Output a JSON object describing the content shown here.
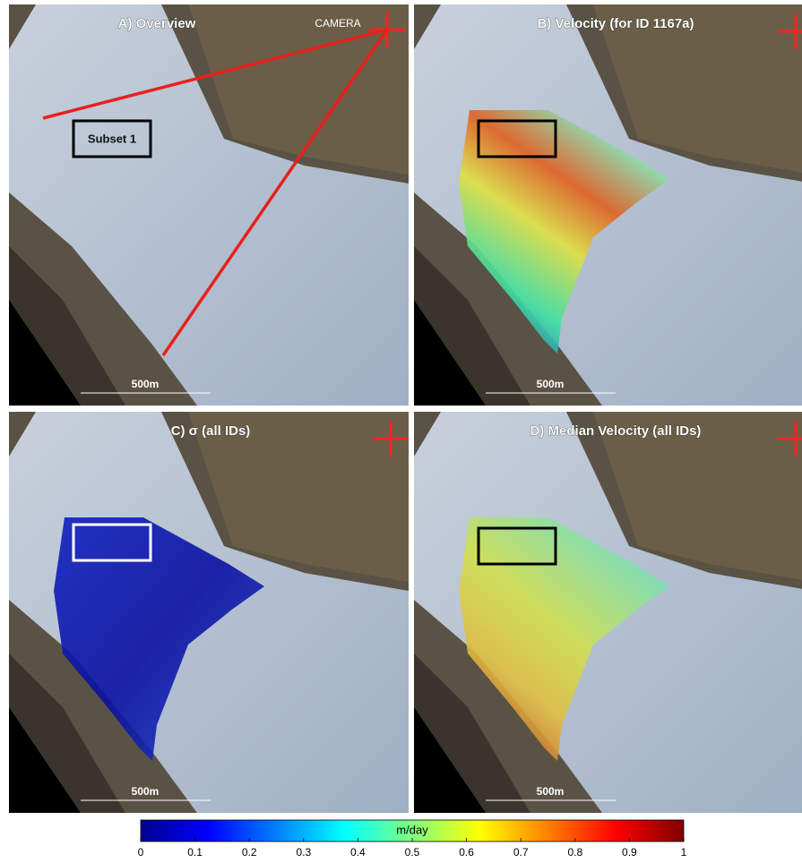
{
  "panels": [
    {
      "title": "A) Overview",
      "camera": "CAMERA",
      "subset": "Subset 1",
      "scale": "500m"
    },
    {
      "title": "B) Velocity (for ID 1167a)",
      "scale": "500m"
    },
    {
      "title": "C) σ (all IDs)",
      "scale": "500m"
    },
    {
      "title": "D) Median Velocity (all IDs)",
      "scale": "500m"
    }
  ],
  "colorbar": {
    "label": "m/day",
    "lim": [
      0,
      1
    ],
    "ticks": [
      0,
      0.1,
      0.2,
      0.3,
      0.4,
      0.5,
      0.6,
      0.7,
      0.8,
      0.9,
      1
    ]
  }
}
